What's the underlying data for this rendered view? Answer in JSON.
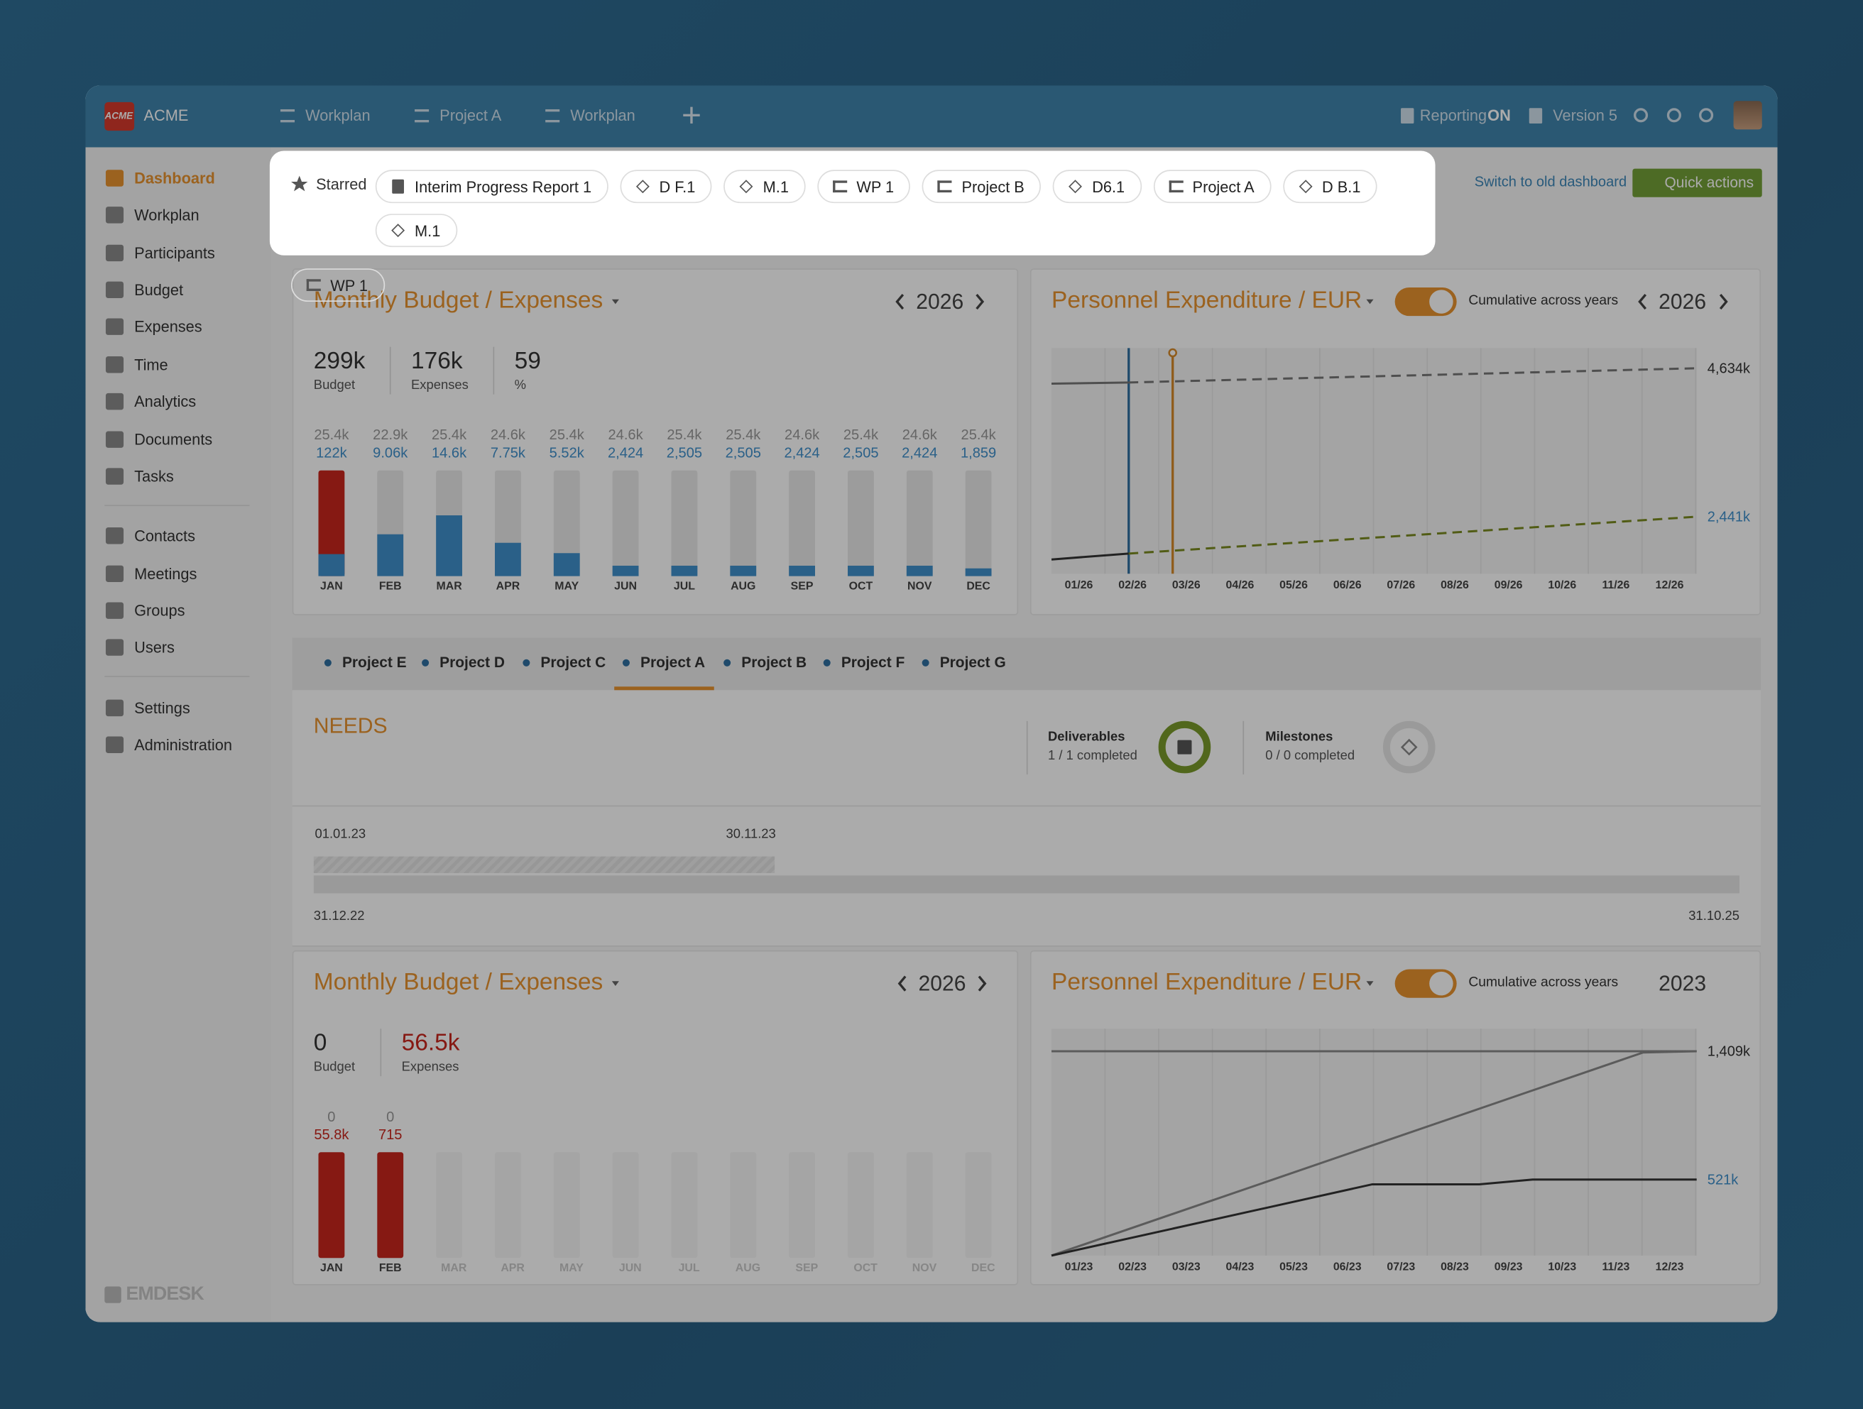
{
  "header": {
    "logo": "ACME",
    "brand": "ACME",
    "tabs": [
      "Workplan",
      "Project A",
      "Workplan"
    ],
    "reporting": "Reporting",
    "reporting_state": "ON",
    "version": "Version 5"
  },
  "sidebar": {
    "groups": [
      [
        "Dashboard",
        "Workplan",
        "Participants",
        "Budget",
        "Expenses",
        "Time",
        "Analytics",
        "Documents",
        "Tasks"
      ],
      [
        "Contacts",
        "Meetings",
        "Groups",
        "Users"
      ],
      [
        "Settings",
        "Administration"
      ]
    ],
    "footer": "EMDESK"
  },
  "starred": {
    "label": "Starred",
    "items": [
      "Interim Progress Report 1",
      "D F.1",
      "M.1",
      "WP 1",
      "Project B",
      "D6.1",
      "Project A",
      "D B.1",
      "M.1",
      "WP 1"
    ]
  },
  "actions": {
    "switch_dashboard": "Switch to old dashboard",
    "quick_actions": "Quick actions"
  },
  "budget_widgets": [
    {
      "title": "Monthly Budget / Expenses",
      "year": "2026",
      "nav": true,
      "stats": [
        {
          "value": "299k",
          "label": "Budget"
        },
        {
          "value": "176k",
          "label": "Expenses"
        },
        {
          "value": "59",
          "label": "%"
        }
      ],
      "months": [
        "JAN",
        "FEB",
        "MAR",
        "APR",
        "MAY",
        "JUN",
        "JUL",
        "AUG",
        "SEP",
        "OCT",
        "NOV",
        "DEC"
      ],
      "budget": [
        25400,
        22900,
        25400,
        24600,
        25400,
        24600,
        25400,
        25400,
        24600,
        25400,
        24600,
        25400
      ],
      "budget_labels": [
        "25.4k",
        "22.9k",
        "25.4k",
        "24.6k",
        "25.4k",
        "24.6k",
        "25.4k",
        "25.4k",
        "24.6k",
        "25.4k",
        "24.6k",
        "25.4k"
      ],
      "expenses": [
        122000,
        9060,
        14600,
        7750,
        5520,
        2424,
        2505,
        2505,
        2424,
        2505,
        2424,
        1859
      ],
      "expenses_labels": [
        "122k",
        "9.06k",
        "14.6k",
        "7.75k",
        "5.52k",
        "2,424",
        "2,505",
        "2,505",
        "2,424",
        "2,505",
        "2,424",
        "1,859"
      ]
    },
    {
      "title": "Monthly Budget / Expenses",
      "year": "2026",
      "nav": true,
      "stats": [
        {
          "value": "0",
          "label": "Budget"
        },
        {
          "value": "56.5k",
          "label": "Expenses"
        }
      ],
      "months": [
        "JAN",
        "FEB",
        "MAR",
        "APR",
        "MAY",
        "JUN",
        "JUL",
        "AUG",
        "SEP",
        "OCT",
        "NOV",
        "DEC"
      ],
      "budget": [
        0,
        0,
        null,
        null,
        null,
        null,
        null,
        null,
        null,
        null,
        null,
        null
      ],
      "budget_labels": [
        "0",
        "0",
        null,
        null,
        null,
        null,
        null,
        null,
        null,
        null,
        null,
        null
      ],
      "expenses": [
        55800,
        715,
        null,
        null,
        null,
        null,
        null,
        null,
        null,
        null,
        null,
        null
      ],
      "expenses_labels": [
        "55.8k",
        "715",
        null,
        null,
        null,
        null,
        null,
        null,
        null,
        null,
        null,
        null
      ]
    }
  ],
  "personnel_widgets": [
    {
      "title": "Personnel Expenditure / EUR",
      "toggle_label": "Cumulative across years",
      "year": "2026",
      "nav": true,
      "x_labels": [
        "01/26",
        "02/26",
        "03/26",
        "04/26",
        "05/26",
        "06/26",
        "07/26",
        "08/26",
        "09/26",
        "10/26",
        "11/26",
        "12/26"
      ],
      "end_labels": [
        "4,634k",
        "2,441k"
      ]
    },
    {
      "title": "Personnel Expenditure / EUR",
      "toggle_label": "Cumulative across years",
      "year": "2023",
      "nav": false,
      "x_labels": [
        "01/23",
        "02/23",
        "03/23",
        "04/23",
        "05/23",
        "06/23",
        "07/23",
        "08/23",
        "09/23",
        "10/23",
        "11/23",
        "12/23"
      ],
      "end_labels": [
        "1,409k",
        "521k"
      ]
    }
  ],
  "project_tabs": {
    "items": [
      "Project E",
      "Project D",
      "Project C",
      "Project A",
      "Project B",
      "Project F",
      "Project G"
    ],
    "active": 3
  },
  "needs": {
    "title": "NEEDS",
    "deliverables": {
      "label": "Deliverables",
      "status": "1 / 1 completed"
    },
    "milestones": {
      "label": "Milestones",
      "status": "0 / 0 completed"
    }
  },
  "timeline": {
    "start_top": "01.01.23",
    "end_top": "30.11.23",
    "start": "31.12.22",
    "end": "31.10.25"
  }
}
